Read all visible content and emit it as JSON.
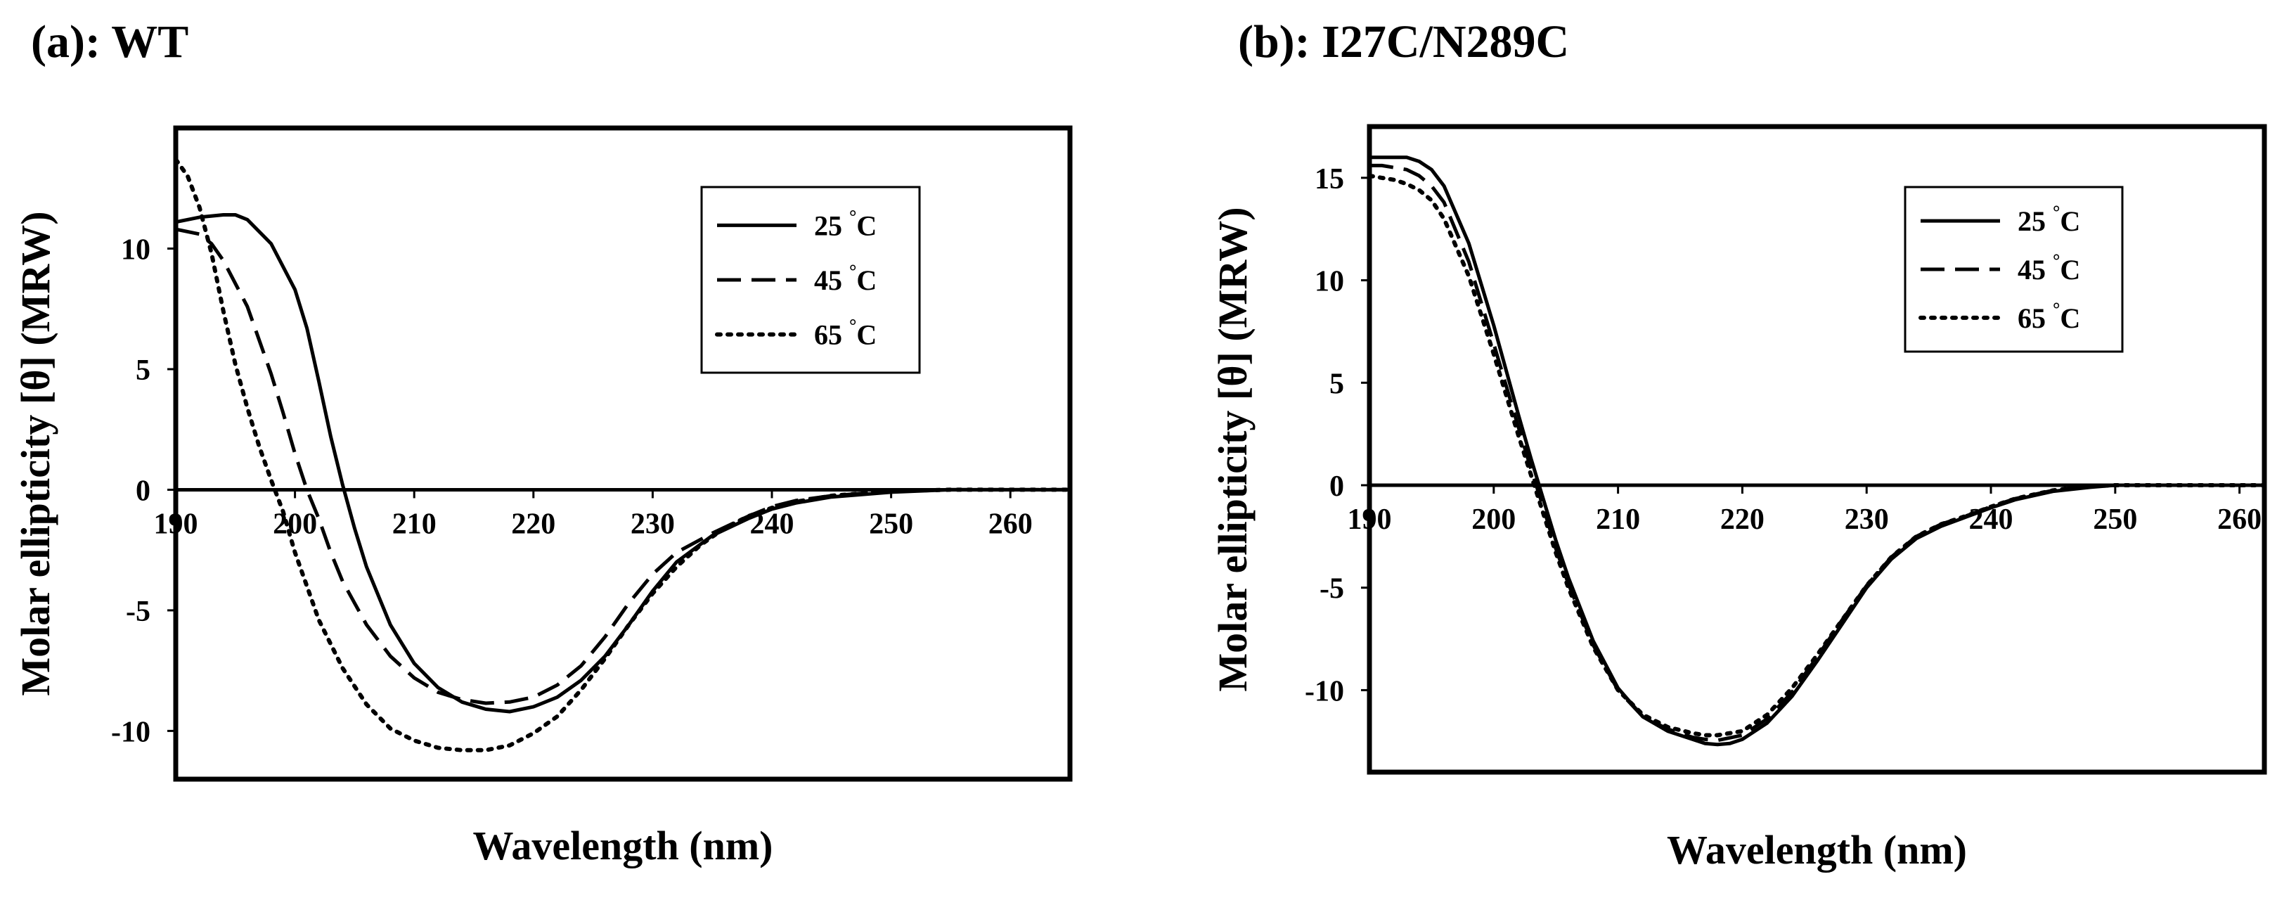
{
  "chart_data": [
    {
      "type": "line",
      "title": "(a): WT",
      "xlabel": "Wavelength (nm)",
      "ylabel": "Molar ellipticity [θ] (MRW)",
      "xlim": [
        190,
        265
      ],
      "ylim": [
        -12,
        15
      ],
      "xticks": [
        190,
        200,
        210,
        220,
        230,
        240,
        250,
        260
      ],
      "yticks": [
        10,
        5,
        0,
        -5,
        -10
      ],
      "legend_position": "top-right",
      "series": [
        {
          "name": "25",
          "unit": "°C",
          "dash": "solid",
          "x": [
            190,
            192,
            194,
            195,
            196,
            198,
            200,
            201,
            202,
            203,
            204,
            205,
            206,
            208,
            210,
            212,
            214,
            216,
            218,
            220,
            222,
            224,
            226,
            228,
            230,
            232,
            235,
            238,
            240,
            242,
            245,
            250,
            255,
            260,
            265
          ],
          "y": [
            11.1,
            11.3,
            11.4,
            11.4,
            11.2,
            10.2,
            8.3,
            6.7,
            4.5,
            2.2,
            0.2,
            -1.6,
            -3.2,
            -5.6,
            -7.2,
            -8.2,
            -8.8,
            -9.1,
            -9.2,
            -9.0,
            -8.6,
            -7.9,
            -6.9,
            -5.6,
            -4.2,
            -3.0,
            -1.9,
            -1.2,
            -0.8,
            -0.55,
            -0.3,
            -0.1,
            0.0,
            0.0,
            0.0
          ]
        },
        {
          "name": "45",
          "unit": "°C",
          "dash": "dashed",
          "x": [
            190,
            192,
            193,
            194,
            196,
            198,
            199,
            200,
            201,
            202,
            203,
            204,
            206,
            208,
            210,
            212,
            214,
            216,
            218,
            220,
            222,
            224,
            226,
            228,
            230,
            232,
            235,
            238,
            240,
            242,
            245,
            250,
            255,
            260,
            265
          ],
          "y": [
            10.8,
            10.6,
            10.2,
            9.5,
            7.6,
            4.8,
            3.2,
            1.5,
            0.0,
            -1.2,
            -2.6,
            -3.8,
            -5.6,
            -6.9,
            -7.8,
            -8.4,
            -8.7,
            -8.85,
            -8.8,
            -8.6,
            -8.1,
            -7.3,
            -6.1,
            -4.7,
            -3.5,
            -2.6,
            -1.8,
            -1.1,
            -0.7,
            -0.45,
            -0.25,
            -0.05,
            0.0,
            0.0,
            0.0
          ]
        },
        {
          "name": "65",
          "unit": "°C",
          "dash": "dotted",
          "x": [
            190,
            191,
            192,
            193,
            194,
            195,
            196,
            197,
            198,
            199,
            200,
            201,
            202,
            204,
            206,
            208,
            210,
            212,
            214,
            216,
            218,
            220,
            222,
            224,
            226,
            228,
            230,
            232,
            234,
            236,
            238,
            240,
            242,
            245,
            250,
            255,
            260,
            265
          ],
          "y": [
            13.7,
            13.0,
            11.7,
            9.8,
            7.4,
            5.2,
            3.4,
            1.8,
            0.4,
            -0.9,
            -2.6,
            -4.0,
            -5.4,
            -7.4,
            -8.9,
            -9.9,
            -10.4,
            -10.7,
            -10.8,
            -10.8,
            -10.6,
            -10.1,
            -9.4,
            -8.3,
            -7.0,
            -5.6,
            -4.3,
            -3.2,
            -2.3,
            -1.6,
            -1.1,
            -0.75,
            -0.5,
            -0.25,
            -0.05,
            0.0,
            0.0,
            0.0
          ]
        }
      ]
    },
    {
      "type": "line",
      "title": "(b): I27C/N289C",
      "xlabel": "Wavelength (nm)",
      "ylabel": "Molar ellipticity [θ] (MRW)",
      "xlim": [
        190,
        262
      ],
      "ylim": [
        -14,
        17.5
      ],
      "xticks": [
        190,
        200,
        210,
        220,
        230,
        240,
        250,
        260
      ],
      "yticks": [
        15,
        10,
        5,
        0,
        -5,
        -10
      ],
      "legend_position": "top-right",
      "series": [
        {
          "name": "25",
          "unit": "°C",
          "dash": "solid",
          "x": [
            190,
            191,
            192,
            193,
            194,
            195,
            196,
            198,
            200,
            202,
            203,
            204,
            205,
            206,
            208,
            210,
            212,
            214,
            216,
            217,
            218,
            219,
            220,
            222,
            224,
            226,
            228,
            230,
            232,
            234,
            236,
            238,
            240,
            242,
            245,
            248,
            250,
            255,
            260,
            262
          ],
          "y": [
            16.0,
            16.0,
            16.0,
            16.0,
            15.8,
            15.4,
            14.6,
            11.8,
            7.8,
            3.4,
            1.3,
            -0.7,
            -2.7,
            -4.5,
            -7.6,
            -9.9,
            -11.3,
            -12.0,
            -12.4,
            -12.6,
            -12.65,
            -12.6,
            -12.4,
            -11.6,
            -10.3,
            -8.6,
            -6.8,
            -5.0,
            -3.6,
            -2.6,
            -2.0,
            -1.55,
            -1.1,
            -0.7,
            -0.3,
            -0.1,
            0.0,
            0.0,
            0.0,
            0.0
          ]
        },
        {
          "name": "45",
          "unit": "°C",
          "dash": "dashed",
          "x": [
            190,
            191,
            192,
            193,
            194,
            195,
            196,
            198,
            200,
            202,
            203,
            204,
            205,
            206,
            208,
            210,
            212,
            214,
            216,
            217,
            218,
            220,
            222,
            224,
            226,
            228,
            230,
            232,
            234,
            236,
            238,
            240,
            242,
            245,
            248,
            250,
            255,
            260,
            262
          ],
          "y": [
            15.6,
            15.6,
            15.5,
            15.4,
            15.1,
            14.6,
            13.8,
            10.9,
            6.9,
            2.8,
            0.8,
            -1.1,
            -3.1,
            -4.8,
            -7.8,
            -10.0,
            -11.3,
            -11.9,
            -12.3,
            -12.4,
            -12.45,
            -12.2,
            -11.4,
            -10.1,
            -8.4,
            -6.6,
            -4.9,
            -3.5,
            -2.5,
            -1.9,
            -1.5,
            -1.05,
            -0.65,
            -0.25,
            -0.05,
            0.0,
            0.0,
            0.0,
            0.0
          ]
        },
        {
          "name": "65",
          "unit": "°C",
          "dash": "dotted",
          "x": [
            190,
            191,
            192,
            193,
            194,
            195,
            196,
            198,
            200,
            202,
            203,
            204,
            205,
            206,
            208,
            210,
            212,
            214,
            216,
            217,
            218,
            220,
            222,
            224,
            226,
            228,
            230,
            232,
            234,
            236,
            238,
            240,
            242,
            245,
            248,
            250,
            255,
            260,
            262
          ],
          "y": [
            15.1,
            15.0,
            14.9,
            14.7,
            14.4,
            13.9,
            13.0,
            10.2,
            6.4,
            2.4,
            0.5,
            -1.4,
            -3.3,
            -5.0,
            -7.9,
            -10.0,
            -11.2,
            -11.8,
            -12.1,
            -12.2,
            -12.2,
            -12.0,
            -11.2,
            -9.9,
            -8.3,
            -6.6,
            -4.9,
            -3.5,
            -2.5,
            -1.9,
            -1.5,
            -1.05,
            -0.65,
            -0.25,
            -0.05,
            0.0,
            0.0,
            0.0,
            0.0
          ]
        }
      ]
    }
  ]
}
